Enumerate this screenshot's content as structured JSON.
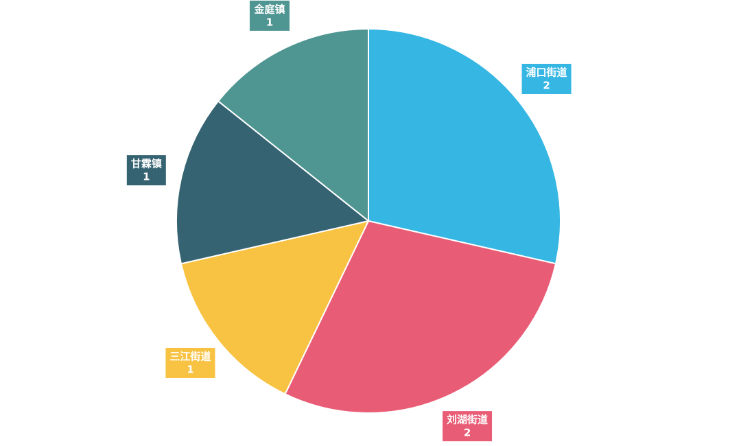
{
  "chart_data": {
    "type": "pie",
    "categories": [
      "浦口街道",
      "刘湖街道",
      "三江街道",
      "甘霖镇",
      "金庭镇"
    ],
    "values": [
      2,
      2,
      1,
      1,
      1
    ],
    "colors": [
      "#36b6e3",
      "#e95c75",
      "#f8c242",
      "#356372",
      "#4f9692"
    ]
  }
}
